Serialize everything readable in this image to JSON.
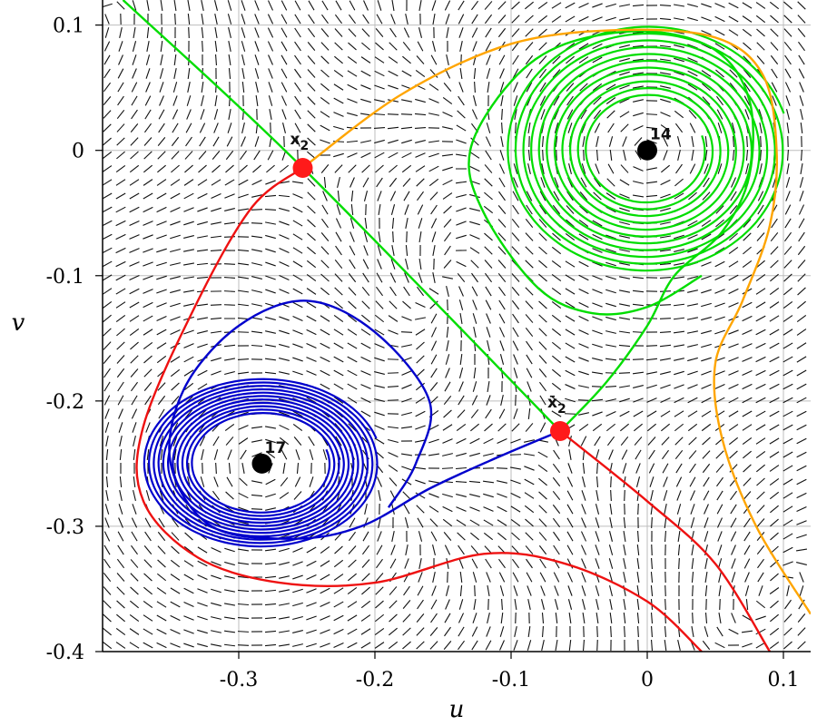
{
  "chart_data": {
    "type": "phase_portrait",
    "xlabel": "u",
    "ylabel": "v",
    "xlim": [
      -0.4,
      0.12
    ],
    "ylim": [
      -0.4,
      0.12
    ],
    "xticks": [
      -0.3,
      -0.2,
      -0.1,
      0,
      0.1
    ],
    "xtick_labels": [
      "-0.3",
      "-0.2",
      "-0.1",
      "0",
      "0.1"
    ],
    "yticks": [
      0.1,
      0,
      -0.1,
      -0.2,
      -0.3,
      -0.4
    ],
    "ytick_labels": [
      "0.1",
      "0",
      "-0.1",
      "-0.2",
      "-0.3",
      "-0.4"
    ],
    "grid": true,
    "direction_field": true,
    "colors": {
      "green": "#00dd00",
      "blue": "#0000cc",
      "red": "#ee1111",
      "orange": "#ffa500",
      "saddle": "#ff1a1a",
      "center": "#000000"
    },
    "equilibria": [
      {
        "label": "14",
        "type": "center",
        "u": 0.0,
        "v": 0.0
      },
      {
        "label": "17",
        "type": "center",
        "u": -0.283,
        "v": -0.25
      },
      {
        "label": "x2",
        "type": "saddle",
        "u": -0.253,
        "v": -0.014
      },
      {
        "label": "x̄2",
        "type": "saddle",
        "u": -0.064,
        "v": -0.224
      }
    ],
    "series": [
      {
        "color": "green",
        "description": "separatrix",
        "points": [
          [
            -0.385,
            0.12
          ],
          [
            -0.253,
            -0.014
          ],
          [
            -0.064,
            -0.224
          ]
        ]
      },
      {
        "color": "green",
        "description": "spiral",
        "points": [
          [
            -0.064,
            -0.224
          ],
          [
            -0.03,
            -0.185
          ],
          [
            0.0,
            -0.14
          ],
          [
            0.02,
            -0.1
          ],
          [
            0.055,
            -0.065
          ],
          [
            0.075,
            -0.02
          ],
          [
            0.075,
            0.04
          ],
          [
            0.05,
            0.08
          ],
          [
            0.0,
            0.095
          ],
          [
            -0.06,
            0.085
          ],
          [
            -0.1,
            0.055
          ],
          [
            -0.13,
            0.0
          ],
          [
            -0.12,
            -0.05
          ],
          [
            -0.08,
            -0.11
          ],
          [
            -0.04,
            -0.13
          ],
          [
            0.0,
            -0.125
          ],
          [
            0.04,
            -0.1
          ]
        ]
      },
      {
        "color": "blue",
        "description": "spiral",
        "points": [
          [
            -0.064,
            -0.224
          ],
          [
            -0.11,
            -0.245
          ],
          [
            -0.16,
            -0.27
          ],
          [
            -0.21,
            -0.3
          ],
          [
            -0.26,
            -0.31
          ],
          [
            -0.32,
            -0.3
          ],
          [
            -0.35,
            -0.25
          ],
          [
            -0.34,
            -0.19
          ],
          [
            -0.3,
            -0.14
          ],
          [
            -0.25,
            -0.12
          ],
          [
            -0.2,
            -0.145
          ],
          [
            -0.16,
            -0.2
          ],
          [
            -0.17,
            -0.25
          ],
          [
            -0.19,
            -0.285
          ]
        ]
      },
      {
        "color": "red",
        "description": "separatrix",
        "points": [
          [
            -0.253,
            -0.014
          ],
          [
            -0.29,
            -0.045
          ],
          [
            -0.33,
            -0.12
          ],
          [
            -0.37,
            -0.22
          ],
          [
            -0.37,
            -0.28
          ],
          [
            -0.33,
            -0.325
          ],
          [
            -0.27,
            -0.345
          ],
          [
            -0.2,
            -0.345
          ],
          [
            -0.12,
            -0.322
          ],
          [
            -0.06,
            -0.33
          ],
          [
            0.0,
            -0.36
          ],
          [
            0.04,
            -0.4
          ]
        ]
      },
      {
        "color": "red",
        "description": "separatrix",
        "points": [
          [
            -0.064,
            -0.224
          ],
          [
            0.0,
            -0.28
          ],
          [
            0.05,
            -0.33
          ],
          [
            0.09,
            -0.4
          ]
        ]
      },
      {
        "color": "orange",
        "description": "separatrix",
        "points": [
          [
            -0.253,
            -0.014
          ],
          [
            -0.18,
            0.045
          ],
          [
            -0.1,
            0.085
          ],
          [
            -0.02,
            0.096
          ],
          [
            0.05,
            0.09
          ],
          [
            0.085,
            0.06
          ],
          [
            0.095,
            0.0
          ],
          [
            0.09,
            -0.06
          ],
          [
            0.07,
            -0.12
          ],
          [
            0.05,
            -0.17
          ],
          [
            0.055,
            -0.23
          ],
          [
            0.08,
            -0.3
          ],
          [
            0.12,
            -0.37
          ]
        ]
      }
    ]
  }
}
